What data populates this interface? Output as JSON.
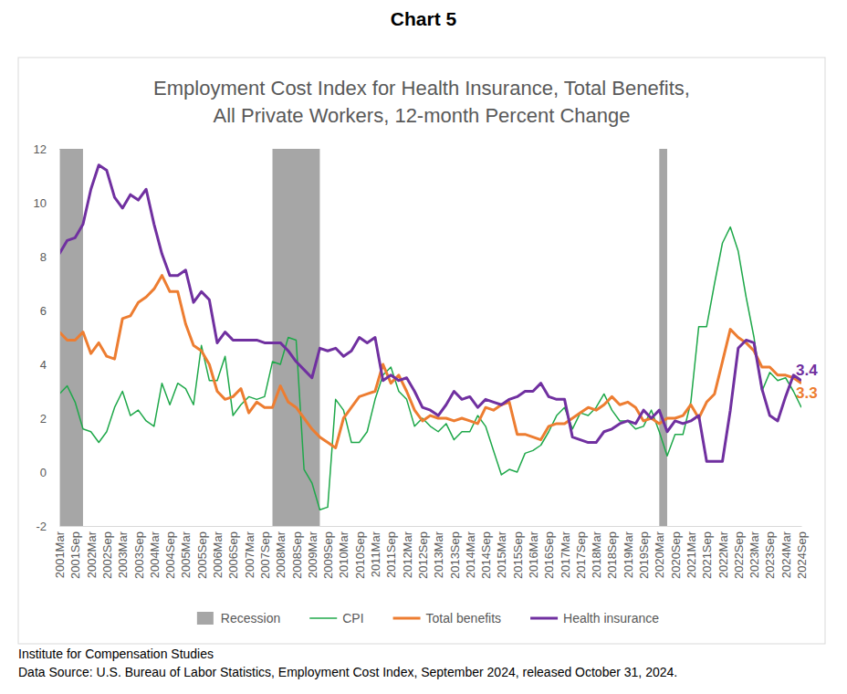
{
  "chart_data": {
    "type": "line",
    "header": "Chart 5",
    "title": [
      "Employment Cost Index for Health Insurance, Total Benefits,",
      "All Private Workers, 12-month Percent Change"
    ],
    "notes": [
      "Institute for Compensation Studies",
      "Data Source: U.S. Bureau of Labor Statistics, Employment Cost Index, September 2024, released October 31, 2024."
    ],
    "categories": [
      "2001Mar",
      null,
      "2001Sep",
      null,
      "2002Mar",
      null,
      "2002Sep",
      null,
      "2003Mar",
      null,
      "2003Sep",
      null,
      "2004Mar",
      null,
      "2004Sep",
      null,
      "2005Mar",
      null,
      "2005Sep",
      null,
      "2006Mar",
      null,
      "2006Sep",
      null,
      "2007Mar",
      null,
      "2007Sep",
      null,
      "2008Mar",
      null,
      "2008Sep",
      null,
      "2009Mar",
      null,
      "2009Sep",
      null,
      "2010Mar",
      null,
      "2010Sep",
      null,
      "2011Mar",
      null,
      "2011Sep",
      null,
      "2012Mar",
      null,
      "2012Sep",
      null,
      "2013Mar",
      null,
      "2013Sep",
      null,
      "2014Mar",
      null,
      "2014Sep",
      null,
      "2015Mar",
      null,
      "2015Sep",
      null,
      "2016Mar",
      null,
      "2016Sep",
      null,
      "2017Mar",
      null,
      "2017Sep",
      null,
      "2018Mar",
      null,
      "2018Sep",
      null,
      "2019Mar",
      null,
      "2019Sep",
      null,
      "2020Mar",
      null,
      "2020Sep",
      null,
      "2021Mar",
      null,
      "2021Sep",
      null,
      "2022Mar",
      null,
      "2022Sep",
      null,
      "2023Mar",
      null,
      "2023Sep",
      null,
      "2024Mar",
      null,
      "2024Sep"
    ],
    "recessions": {
      "name": "Recession",
      "color": "#a6a6a6",
      "ranges": [
        [
          0,
          3
        ],
        [
          27,
          33
        ],
        [
          76,
          77
        ]
      ]
    },
    "series": [
      {
        "name": "CPI",
        "color": "#1fa84a",
        "values": [
          2.9,
          3.2,
          2.6,
          1.6,
          1.5,
          1.1,
          1.5,
          2.4,
          3.0,
          2.1,
          2.3,
          1.9,
          1.7,
          3.3,
          2.5,
          3.3,
          3.1,
          2.5,
          4.7,
          3.4,
          3.4,
          4.3,
          2.1,
          2.5,
          2.8,
          2.7,
          2.8,
          4.1,
          4.0,
          5.0,
          4.9,
          0.1,
          -0.4,
          -1.4,
          -1.3,
          2.7,
          2.3,
          1.1,
          1.1,
          1.5,
          2.7,
          3.6,
          3.9,
          3.0,
          2.7,
          1.7,
          2.0,
          1.7,
          1.5,
          1.8,
          1.2,
          1.5,
          1.5,
          2.1,
          1.7,
          0.8,
          -0.1,
          0.1,
          0.0,
          0.7,
          0.8,
          1.0,
          1.5,
          2.1,
          2.4,
          1.6,
          2.2,
          2.1,
          2.4,
          2.9,
          2.3,
          1.9,
          1.9,
          1.6,
          1.7,
          2.3,
          1.5,
          0.6,
          1.4,
          1.4,
          2.6,
          5.4,
          5.4,
          7.0,
          8.5,
          9.1,
          8.2,
          6.5,
          5.0,
          3.0,
          3.7,
          3.4,
          3.5,
          3.0,
          2.4
        ]
      },
      {
        "name": "Total benefits",
        "color": "#ed7d31",
        "values": [
          5.2,
          4.9,
          4.9,
          5.2,
          4.4,
          4.8,
          4.3,
          4.2,
          5.7,
          5.8,
          6.3,
          6.5,
          6.8,
          7.3,
          6.7,
          6.7,
          5.5,
          4.7,
          4.5,
          4.0,
          3.0,
          2.7,
          2.8,
          3.1,
          2.2,
          2.6,
          2.4,
          2.4,
          3.2,
          2.6,
          2.4,
          2.0,
          1.6,
          1.3,
          1.1,
          0.9,
          2.0,
          2.4,
          2.8,
          2.9,
          3.0,
          4.0,
          3.3,
          3.6,
          3.0,
          2.3,
          1.9,
          2.1,
          2.0,
          2.0,
          1.9,
          2.0,
          1.9,
          1.8,
          2.4,
          2.3,
          2.5,
          2.6,
          1.4,
          1.4,
          1.3,
          1.2,
          1.7,
          1.8,
          1.8,
          2.0,
          2.2,
          2.4,
          2.3,
          2.5,
          2.8,
          2.5,
          2.6,
          2.4,
          1.9,
          2.0,
          1.8,
          2.0,
          2.0,
          2.1,
          2.5,
          2.0,
          2.6,
          2.9,
          4.1,
          5.3,
          5.0,
          4.8,
          4.5,
          3.9,
          3.9,
          3.6,
          3.6,
          3.5,
          3.3
        ]
      },
      {
        "name": "Health insurance",
        "color": "#7030a0",
        "values": [
          8.1,
          8.6,
          8.7,
          9.2,
          10.5,
          11.4,
          11.2,
          10.2,
          9.8,
          10.3,
          10.1,
          10.5,
          9.2,
          8.1,
          7.3,
          7.3,
          7.5,
          6.3,
          6.7,
          6.4,
          4.8,
          5.2,
          4.9,
          4.9,
          4.9,
          4.9,
          4.8,
          4.8,
          4.8,
          4.5,
          4.1,
          3.8,
          3.5,
          4.6,
          4.5,
          4.6,
          4.3,
          4.5,
          5.0,
          4.8,
          5.0,
          3.4,
          3.6,
          3.4,
          3.5,
          3.0,
          2.4,
          2.3,
          2.1,
          2.5,
          3.0,
          2.7,
          2.8,
          2.4,
          2.7,
          2.6,
          2.5,
          2.7,
          2.8,
          3.0,
          3.0,
          3.3,
          2.8,
          2.7,
          2.7,
          1.3,
          1.2,
          1.1,
          1.1,
          1.5,
          1.6,
          1.8,
          1.9,
          1.8,
          2.3,
          2.0,
          2.3,
          1.5,
          1.9,
          1.8,
          1.9,
          2.1,
          0.4,
          0.4,
          0.4,
          2.3,
          4.6,
          4.9,
          4.8,
          3.1,
          2.1,
          1.9,
          2.8,
          3.6,
          3.4
        ]
      }
    ],
    "annotations": [
      {
        "text": "3.4",
        "series": "Health insurance"
      },
      {
        "text": "3.3",
        "series": "Total benefits"
      }
    ],
    "ylim": [
      -2,
      12
    ],
    "yticks": [
      -2,
      0,
      2,
      4,
      6,
      8,
      10,
      12
    ],
    "grid": false,
    "legend": "bottom"
  }
}
